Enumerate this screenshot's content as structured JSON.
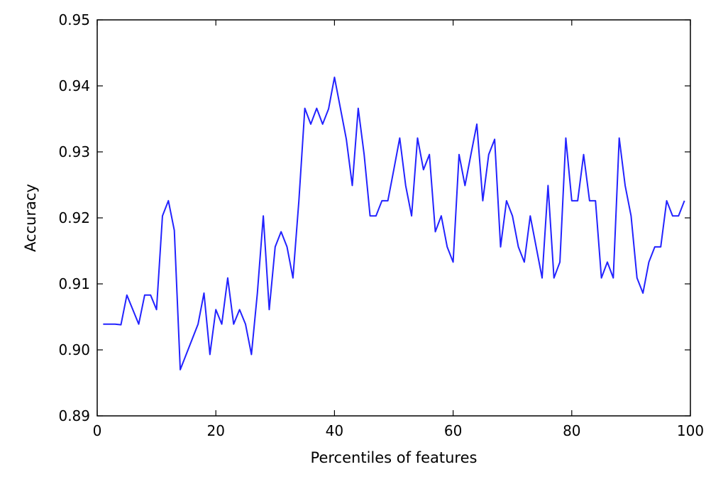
{
  "chart_data": {
    "type": "line",
    "title": "",
    "xlabel": "Percentiles of features",
    "ylabel": "Accuracy",
    "xlim": [
      0,
      100
    ],
    "ylim": [
      0.89,
      0.95
    ],
    "x_ticks": [
      0,
      20,
      40,
      60,
      80,
      100
    ],
    "x_tick_labels": [
      "0",
      "20",
      "40",
      "60",
      "80",
      "100"
    ],
    "y_ticks": [
      0.89,
      0.9,
      0.91,
      0.92,
      0.93,
      0.94,
      0.95
    ],
    "y_tick_labels": [
      "0.89",
      "0.90",
      "0.91",
      "0.92",
      "0.93",
      "0.94",
      "0.95"
    ],
    "grid": false,
    "line_color": "#2222ff",
    "series": [
      {
        "x": [
          1,
          2,
          3,
          4,
          5,
          6,
          7,
          8,
          9,
          10,
          11,
          12,
          13,
          14,
          15,
          16,
          17,
          18,
          19,
          20,
          21,
          22,
          23,
          24,
          25,
          26,
          27,
          28,
          29,
          30,
          31,
          32,
          33,
          34,
          35,
          36,
          37,
          38,
          39,
          40,
          41,
          42,
          43,
          44,
          45,
          46,
          47,
          48,
          49,
          50,
          51,
          52,
          53,
          54,
          55,
          56,
          57,
          58,
          59,
          60,
          61,
          62,
          63,
          64,
          65,
          66,
          67,
          68,
          69,
          70,
          71,
          72,
          73,
          74,
          75,
          76,
          77,
          78,
          79,
          80,
          81,
          82,
          83,
          84,
          85,
          86,
          87,
          88,
          89,
          90,
          91,
          92,
          93,
          94,
          95,
          96,
          97,
          98,
          99
        ],
        "values": [
          0.9039,
          0.9039,
          0.9039,
          0.9038,
          0.9083,
          0.9061,
          0.9039,
          0.9083,
          0.9083,
          0.9061,
          0.9203,
          0.9226,
          0.9181,
          0.897,
          0.8993,
          0.9016,
          0.9039,
          0.9086,
          0.8993,
          0.9061,
          0.9039,
          0.9109,
          0.9039,
          0.9061,
          0.9039,
          0.8993,
          0.9086,
          0.9203,
          0.9061,
          0.9156,
          0.9179,
          0.9156,
          0.9109,
          0.9226,
          0.9366,
          0.9342,
          0.9366,
          0.9342,
          0.9365,
          0.9413,
          0.9366,
          0.9319,
          0.9249,
          0.9366,
          0.9296,
          0.9203,
          0.9203,
          0.9226,
          0.9226,
          0.9273,
          0.9321,
          0.9249,
          0.9203,
          0.9321,
          0.9273,
          0.9296,
          0.9179,
          0.9203,
          0.9156,
          0.9133,
          0.9296,
          0.9249,
          0.9296,
          0.9342,
          0.9226,
          0.9296,
          0.9319,
          0.9156,
          0.9226,
          0.9203,
          0.9156,
          0.9133,
          0.9203,
          0.9156,
          0.9109,
          0.9249,
          0.9109,
          0.9133,
          0.9321,
          0.9226,
          0.9226,
          0.9296,
          0.9226,
          0.9226,
          0.9109,
          0.9133,
          0.9109,
          0.9321,
          0.9249,
          0.9203,
          0.9109,
          0.9086,
          0.9133,
          0.9156,
          0.9156,
          0.9226,
          0.9203,
          0.9203,
          0.9226
        ]
      }
    ]
  }
}
